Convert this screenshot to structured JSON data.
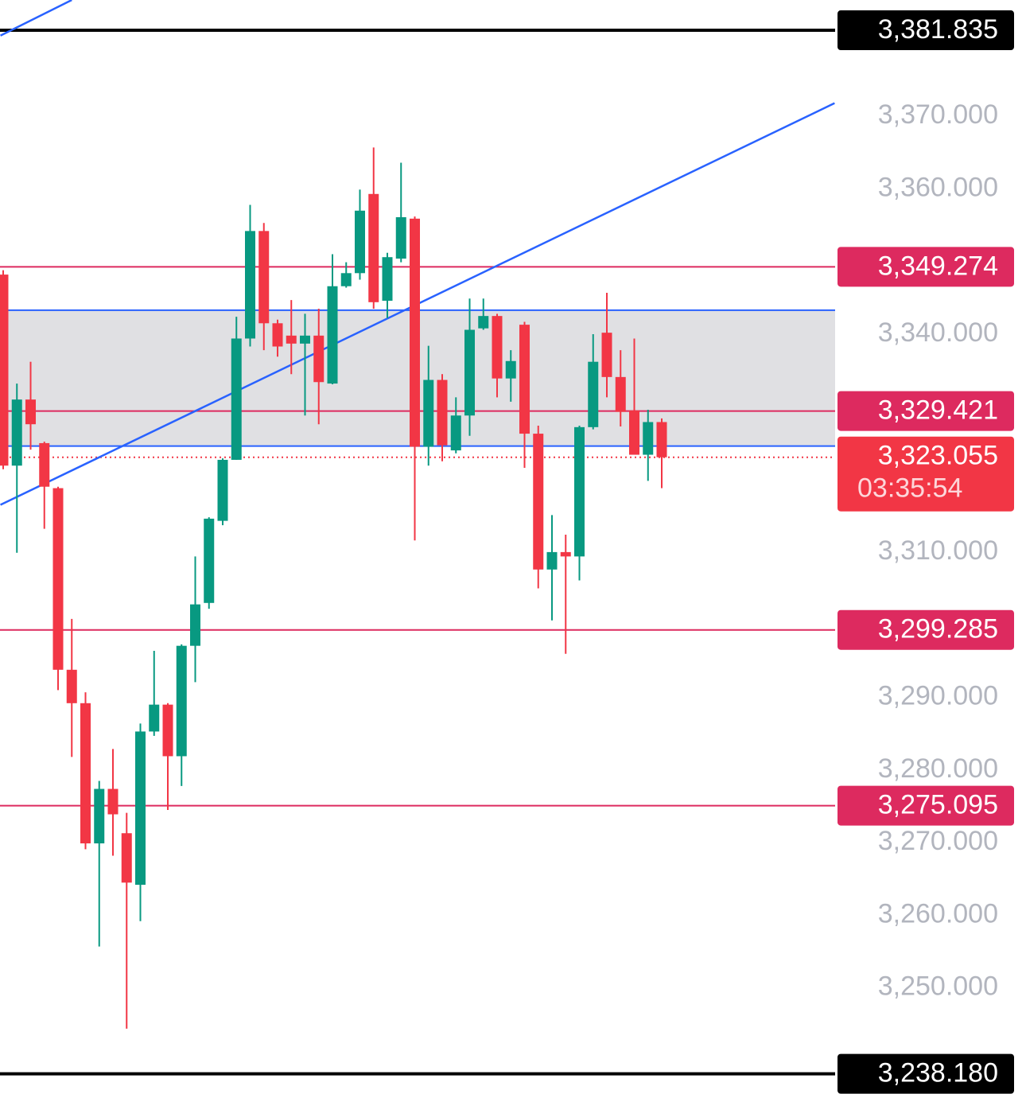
{
  "chart_data": {
    "type": "candlestick",
    "up_color": "#089981",
    "down_color": "#f23645",
    "open": [
      3348.2,
      3321.9,
      3331.0,
      3325.0,
      3318.8,
      3293.8,
      3289.2,
      3269.9,
      3277.4,
      3271.3,
      3264.2,
      3285.3,
      3289.0,
      3281.9,
      3297.1,
      3303.0,
      3314.3,
      3322.7,
      3339.4,
      3354.2,
      3341.5,
      3339.8,
      3338.7,
      3339.8,
      3333.2,
      3346.6,
      3348.4,
      3359.3,
      3344.6,
      3350.4,
      3355.9,
      3324.5,
      3333.7,
      3324.0,
      3328.8,
      3340.8,
      3342.5,
      3333.9,
      3341.3,
      3326.3,
      3307.6,
      3310.0,
      3309.4,
      3327.2,
      3340.2,
      3334.1,
      3329.5,
      3323.4,
      3327.9
    ],
    "high": [
      3348.8,
      3333.2,
      3336.2,
      3325.2,
      3319.0,
      3300.8,
      3290.7,
      3278.5,
      3282.9,
      3274.1,
      3286.4,
      3296.4,
      3289.2,
      3297.3,
      3309.4,
      3314.8,
      3322.9,
      3342.4,
      3357.8,
      3355.3,
      3342.0,
      3344.7,
      3342.8,
      3343.5,
      3351.0,
      3349.9,
      3359.9,
      3365.7,
      3351.2,
      3363.6,
      3356.2,
      3338.4,
      3334.5,
      3331.3,
      3344.9,
      3344.9,
      3342.8,
      3337.8,
      3341.7,
      3327.4,
      3315.1,
      3312.4,
      3327.4,
      3340.0,
      3345.7,
      3337.8,
      3339.4,
      3329.6,
      3328.4
    ],
    "low": [
      3321.4,
      3309.9,
      3324.1,
      3313.2,
      3291.0,
      3281.8,
      3269.1,
      3255.7,
      3268.2,
      3244.4,
      3259.2,
      3284.7,
      3274.5,
      3277.8,
      3292.1,
      3302.2,
      3313.7,
      3322.7,
      3338.3,
      3337.8,
      3336.9,
      3334.5,
      3328.8,
      3327.6,
      3333.1,
      3346.4,
      3347.5,
      3343.5,
      3342.2,
      3349.9,
      3311.6,
      3321.9,
      3322.5,
      3323.6,
      3326.0,
      3340.6,
      3331.3,
      3330.7,
      3321.6,
      3305.0,
      3300.6,
      3296.0,
      3306.1,
      3326.9,
      3331.3,
      3327.3,
      3323.4,
      3319.8,
      3318.8
    ],
    "close": [
      3321.9,
      3331.0,
      3327.6,
      3319.0,
      3293.8,
      3289.2,
      3269.9,
      3277.4,
      3273.9,
      3264.5,
      3285.3,
      3289.0,
      3281.9,
      3297.1,
      3302.8,
      3314.6,
      3322.7,
      3339.4,
      3354.2,
      3341.5,
      3338.3,
      3338.7,
      3339.8,
      3333.4,
      3346.6,
      3348.4,
      3357.0,
      3344.4,
      3350.6,
      3356.1,
      3324.5,
      3333.7,
      3324.7,
      3328.8,
      3340.6,
      3342.5,
      3333.9,
      3336.3,
      3326.3,
      3307.6,
      3310.0,
      3309.4,
      3327.2,
      3336.2,
      3334.1,
      3329.3,
      3323.4,
      3327.9,
      3323.055
    ],
    "ylim": [
      3235.4,
      3386.0
    ],
    "yticks": [
      {
        "value": 3370,
        "label": "3,370.000"
      },
      {
        "value": 3360,
        "label": "3,360.000"
      },
      {
        "value": 3340,
        "label": "3,340.000"
      },
      {
        "value": 3310,
        "label": "3,310.000"
      },
      {
        "value": 3290,
        "label": "3,290.000"
      },
      {
        "value": 3280,
        "label": "3,280.000"
      },
      {
        "value": 3270,
        "label": "3,270.000"
      },
      {
        "value": 3260,
        "label": "3,260.000"
      },
      {
        "value": 3250,
        "label": "3,250.000"
      }
    ],
    "zone": {
      "values": [
        3324.6,
        3343.3
      ],
      "color": "#e0e0e3",
      "edge_color": "#2962ff"
    },
    "trendlines": [
      {
        "x": [
          -0.2,
          60.6
        ],
        "y": [
          3316.5,
          3371.8
        ],
        "color": "#2962ff"
      },
      {
        "x": [
          -0.2,
          5.0
        ],
        "y": [
          3381.1,
          3386.0
        ],
        "color": "#2962ff"
      }
    ],
    "levels": [
      {
        "value": 3381.835,
        "label": "3,381.835",
        "color": "#000000"
      },
      {
        "value": 3349.274,
        "label": "3,349.274",
        "color": "#dd2a5f"
      },
      {
        "value": 3329.421,
        "label": "3,329.421",
        "color": "#dd2a5f"
      },
      {
        "value": 3299.285,
        "label": "3,299.285",
        "color": "#dd2a5f"
      },
      {
        "value": 3275.095,
        "label": "3,275.095",
        "color": "#dd2a5f"
      },
      {
        "value": 3238.18,
        "label": "3,238.180",
        "color": "#000000"
      }
    ],
    "last_price": {
      "value": 3323.055,
      "label": "3,323.055",
      "countdown": "03:35:54",
      "color": "#f23645"
    }
  }
}
